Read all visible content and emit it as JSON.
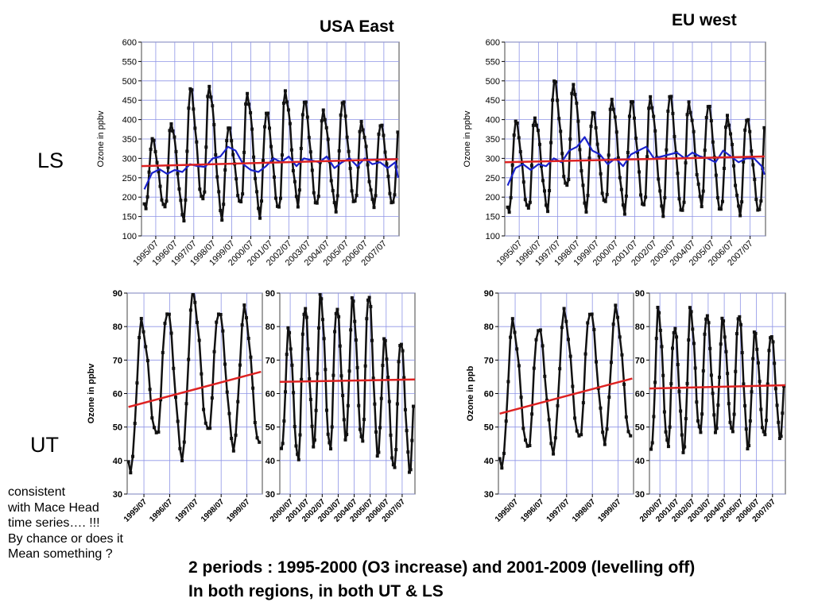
{
  "titles": {
    "usa": "USA East",
    "eu": "EU west"
  },
  "row_labels": {
    "ls": "LS",
    "ut": "UT"
  },
  "note": [
    "consistent",
    "with Mace Head",
    "time series…. !!!",
    "By chance or does it",
    "Mean something ?"
  ],
  "conclusion": [
    "2 periods : 1995-2000 (O3 increase) and 2001-2009 (levelling off)",
    "In both regions, in both UT & LS"
  ],
  "colors": {
    "obs": "#111111",
    "trend": "#dd2222",
    "smooth": "#1a22cc",
    "grid": "#8e94e6"
  },
  "chart_data": [
    {
      "id": "usa-ls",
      "type": "line",
      "ylabel": "Ozone in ppbv",
      "ylim": [
        100,
        600
      ],
      "yticks": [
        100,
        150,
        200,
        250,
        300,
        350,
        400,
        450,
        500,
        550,
        600
      ],
      "xlim": [
        1994.75,
        2008.3
      ],
      "xtick_labels": [
        "1995/07",
        "1996/07",
        "1997/07",
        "1998/07",
        "1999/07",
        "2000/07",
        "2001/07",
        "2002/07",
        "2003/07",
        "2004/07",
        "2005/07",
        "2006/07",
        "2007/07"
      ],
      "seasonal": {
        "start": 1994.9,
        "end": 2008.25,
        "minima": [
          200,
          175,
          170,
          145,
          185,
          150,
          180,
          155,
          165,
          185,
          175,
          170,
          180,
          180
        ],
        "maxima": [
          390,
          350,
          390,
          480,
          485,
          380,
          465,
          420,
          470,
          450,
          420,
          450,
          390
        ],
        "peak_phase": 0.3
      },
      "trend": {
        "x": [
          1994.75,
          2008.25
        ],
        "y": [
          280,
          298
        ]
      },
      "smooth": {
        "x": [
          1994.9,
          1995.3,
          1995.7,
          1996.1,
          1996.5,
          1996.9,
          1997.3,
          1997.7,
          1998.1,
          1998.5,
          1998.9,
          1999.3,
          1999.7,
          2000.1,
          2000.5,
          2000.9,
          2001.3,
          2001.7,
          2002.1,
          2002.5,
          2002.9,
          2003.3,
          2003.7,
          2004.1,
          2004.5,
          2004.9,
          2005.3,
          2005.7,
          2006.1,
          2006.5,
          2006.9,
          2007.3,
          2007.7,
          2008.1,
          2008.25
        ],
        "y": [
          220,
          262,
          272,
          260,
          270,
          265,
          285,
          280,
          278,
          300,
          305,
          330,
          320,
          285,
          270,
          265,
          280,
          300,
          290,
          305,
          280,
          300,
          295,
          290,
          305,
          275,
          290,
          300,
          280,
          300,
          285,
          290,
          275,
          290,
          250
        ]
      }
    },
    {
      "id": "eu-ls",
      "type": "line",
      "ylabel": "Ozone in ppbv",
      "ylim": [
        100,
        600
      ],
      "yticks": [
        100,
        150,
        200,
        250,
        300,
        350,
        400,
        450,
        500,
        550,
        600
      ],
      "xlim": [
        1994.75,
        2008.3
      ],
      "xtick_labels": [
        "1995/07",
        "1996/07",
        "1997/07",
        "1998/07",
        "1999/07",
        "2000/07",
        "2001/07",
        "2002/07",
        "2003/07",
        "2004/07",
        "2005/07",
        "2006/07",
        "2007/07"
      ],
      "seasonal": {
        "start": 1994.9,
        "end": 2008.25,
        "minima": [
          240,
          165,
          165,
          170,
          220,
          170,
          180,
          165,
          170,
          160,
          155,
          185,
          160,
          160
        ],
        "maxima": [
          400,
          395,
          405,
          500,
          490,
          420,
          450,
          450,
          455,
          465,
          440,
          440,
          405
        ],
        "peak_phase": 0.3
      },
      "trend": {
        "x": [
          1994.75,
          2008.25
        ],
        "y": [
          290,
          305
        ]
      },
      "smooth": {
        "x": [
          1994.9,
          1995.3,
          1995.7,
          1996.1,
          1996.5,
          1996.9,
          1997.3,
          1997.7,
          1998.1,
          1998.5,
          1998.9,
          1999.3,
          1999.7,
          2000.1,
          2000.5,
          2000.9,
          2001.3,
          2001.7,
          2002.1,
          2002.5,
          2002.9,
          2003.3,
          2003.7,
          2004.1,
          2004.5,
          2004.9,
          2005.3,
          2005.7,
          2006.1,
          2006.5,
          2006.9,
          2007.3,
          2007.7,
          2008.1,
          2008.25
        ],
        "y": [
          230,
          275,
          285,
          270,
          285,
          280,
          300,
          290,
          320,
          330,
          355,
          320,
          310,
          285,
          300,
          280,
          310,
          320,
          330,
          300,
          305,
          310,
          315,
          300,
          315,
          305,
          300,
          290,
          320,
          305,
          290,
          300,
          300,
          280,
          258
        ]
      }
    },
    {
      "id": "usa-ut-1",
      "type": "line",
      "ylabel": "Ozone in ppbv",
      "ylim": [
        30,
        90
      ],
      "yticks": [
        30,
        40,
        50,
        60,
        70,
        80,
        90
      ],
      "xlim": [
        1994.85,
        2000.1
      ],
      "xtick_labels": [
        "1995/07",
        "1996/07",
        "1997/07",
        "1998/07",
        "1999/07"
      ],
      "seasonal": {
        "start": 1994.9,
        "end": 2000.05,
        "minima": [
          55,
          37,
          47,
          41,
          48,
          44
        ],
        "maxima": [
          83,
          81,
          85,
          90,
          85
        ],
        "peak_phase": 0.4
      },
      "trend": {
        "x": [
          1994.9,
          2000.05
        ],
        "y": [
          56,
          66.5
        ]
      }
    },
    {
      "id": "usa-ut-2",
      "type": "line",
      "ylabel": "",
      "ylim": [
        30,
        90
      ],
      "yticks": [
        30,
        40,
        50,
        60,
        70,
        80,
        90
      ],
      "xlim": [
        1999.85,
        2008.3
      ],
      "xtick_labels": [
        "2000/07",
        "2001/07",
        "2002/07",
        "2003/07",
        "2004/07",
        "2005/07",
        "2006/07",
        "2007/07"
      ],
      "seasonal": {
        "start": 1999.95,
        "end": 2008.2,
        "minima": [
          50,
          44,
          40,
          45,
          43,
          47,
          45,
          42,
          37
        ],
        "maxima": [
          80,
          79,
          86,
          89,
          86,
          88,
          90,
          76
        ],
        "peak_phase": 0.4
      },
      "trend": {
        "x": [
          1999.85,
          2008.3
        ],
        "y": [
          63.5,
          64.2
        ]
      }
    },
    {
      "id": "eu-ut-1",
      "type": "line",
      "ylabel": "Ozone in ppb",
      "ylim": [
        30,
        90
      ],
      "yticks": [
        30,
        40,
        50,
        60,
        70,
        80,
        90
      ],
      "xlim": [
        1994.85,
        2000.1
      ],
      "xtick_labels": [
        "1995/07",
        "1996/07",
        "1997/07",
        "1998/07",
        "1999/07"
      ],
      "seasonal": {
        "start": 1994.9,
        "end": 2000.05,
        "minima": [
          67,
          38,
          43,
          43,
          46,
          46
        ],
        "maxima": [
          79,
          81,
          80,
          84,
          85
        ],
        "peak_phase": 0.4
      },
      "trend": {
        "x": [
          1994.9,
          2000.05
        ],
        "y": [
          54,
          64.5
        ]
      }
    },
    {
      "id": "eu-ut-2",
      "type": "line",
      "ylabel": "",
      "ylim": [
        30,
        90
      ],
      "yticks": [
        30,
        40,
        50,
        60,
        70,
        80,
        90
      ],
      "xlim": [
        1999.85,
        2008.3
      ],
      "xtick_labels": [
        "2000/07",
        "2001/07",
        "2002/07",
        "2003/07",
        "2004/07",
        "2005/07",
        "2006/07",
        "2007/07"
      ],
      "seasonal": {
        "start": 1999.95,
        "end": 2008.2,
        "minima": [
          44,
          44,
          44,
          43,
          48,
          49,
          48,
          44,
          47
        ],
        "maxima": [
          80,
          85,
          80,
          85,
          84,
          82,
          84,
          78
        ],
        "peak_phase": 0.4
      },
      "trend": {
        "x": [
          1999.85,
          2008.3
        ],
        "y": [
          61.5,
          62.5
        ]
      }
    }
  ]
}
